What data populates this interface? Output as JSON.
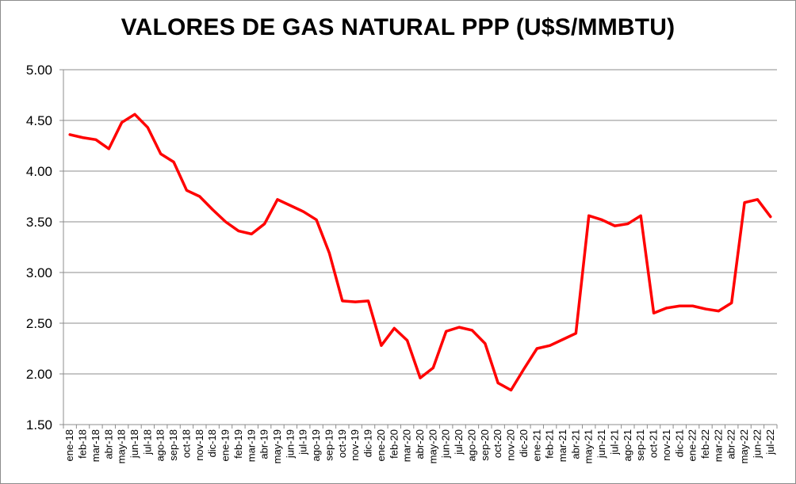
{
  "chart_data": {
    "type": "line",
    "title": "VALORES DE GAS NATURAL PPP (U$S/MMBTU)",
    "xlabel": "",
    "ylabel": "",
    "ylim": [
      1.5,
      5.0
    ],
    "yticks": [
      "1.50",
      "2.00",
      "2.50",
      "3.00",
      "3.50",
      "4.00",
      "4.50",
      "5.00"
    ],
    "grid": true,
    "legend": "none",
    "line_color": "#ff0000",
    "categories": [
      "ene-18",
      "feb-18",
      "mar-18",
      "abr-18",
      "may-18",
      "jun-18",
      "jul-18",
      "ago-18",
      "sep-18",
      "oct-18",
      "nov-18",
      "dic-18",
      "ene-19",
      "feb-19",
      "mar-19",
      "abr-19",
      "may-19",
      "jun-19",
      "jul-19",
      "ago-19",
      "sep-19",
      "oct-19",
      "nov-19",
      "dic-19",
      "ene-20",
      "feb-20",
      "mar-20",
      "abr-20",
      "may-20",
      "jun-20",
      "jul-20",
      "ago-20",
      "sep-20",
      "oct-20",
      "nov-20",
      "dic-20",
      "ene-21",
      "feb-21",
      "mar-21",
      "abr-21",
      "may-21",
      "jun-21",
      "jul-21",
      "ago-21",
      "sep-21",
      "oct-21",
      "nov-21",
      "dic-21",
      "ene-22",
      "feb-22",
      "mar-22",
      "abr-22",
      "may-22",
      "jun-22",
      "jul-22"
    ],
    "series": [
      {
        "values": [
          4.36,
          4.33,
          4.31,
          4.22,
          4.48,
          4.56,
          4.43,
          4.17,
          4.09,
          3.81,
          3.75,
          3.62,
          3.5,
          3.41,
          3.38,
          3.48,
          3.72,
          3.66,
          3.6,
          3.52,
          3.19,
          2.72,
          2.71,
          2.72,
          2.28,
          2.45,
          2.33,
          1.96,
          2.06,
          2.42,
          2.46,
          2.43,
          2.3,
          1.91,
          1.84,
          2.05,
          2.25,
          2.28,
          2.34,
          2.4,
          3.56,
          3.52,
          3.46,
          3.48,
          3.56,
          2.6,
          2.65,
          2.67,
          2.67,
          2.64,
          2.62,
          2.7,
          3.69,
          3.72,
          3.55
        ]
      }
    ]
  }
}
